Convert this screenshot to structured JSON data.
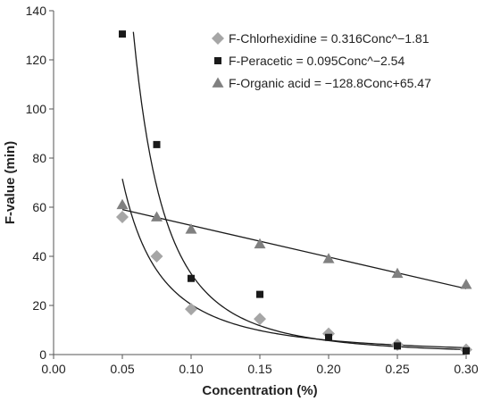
{
  "chart_data": {
    "type": "scatter",
    "title": "",
    "xlabel": "Concentration (%)",
    "ylabel": "F-value (min)",
    "xlim": [
      0,
      0.3
    ],
    "ylim": [
      0,
      140
    ],
    "x_ticks": [
      0,
      0.05,
      0.1,
      0.15,
      0.2,
      0.25,
      0.3
    ],
    "x_tick_labels": [
      "0.00",
      "0.05",
      "0.10",
      "0.15",
      "0.20",
      "0.25",
      "0.30"
    ],
    "y_ticks": [
      0,
      20,
      40,
      60,
      80,
      100,
      120,
      140
    ],
    "y_tick_labels": [
      "0",
      "20",
      "40",
      "60",
      "80",
      "100",
      "120",
      "140"
    ],
    "grid": false,
    "legend_position": "top-right",
    "series": [
      {
        "name": "F-Chlorhexidine = 0.316Conc^−1.81",
        "marker": "diamond",
        "color": "#a6a6a6",
        "x": [
          0.05,
          0.075,
          0.1,
          0.15,
          0.2,
          0.25,
          0.3
        ],
        "y": [
          56,
          40,
          18.5,
          14.5,
          8.5,
          4,
          2
        ],
        "fit": {
          "kind": "power",
          "a": 0.316,
          "b": -1.81,
          "x_range": [
            0.05,
            0.3
          ]
        }
      },
      {
        "name": "F-Peracetic = 0.095Conc^−2.54",
        "marker": "square",
        "color": "#1a1a1a",
        "x": [
          0.05,
          0.075,
          0.1,
          0.15,
          0.2,
          0.25,
          0.3
        ],
        "y": [
          130.5,
          85.5,
          31,
          24.5,
          7,
          3.5,
          1.5
        ],
        "fit": {
          "kind": "power",
          "a": 0.095,
          "b": -2.54,
          "x_range": [
            0.058,
            0.3
          ]
        }
      },
      {
        "name": "F-Organic acid = −128.8Conc+65.47",
        "marker": "triangle",
        "color": "#808080",
        "x": [
          0.05,
          0.075,
          0.1,
          0.15,
          0.2,
          0.25,
          0.3
        ],
        "y": [
          61,
          56,
          51,
          45,
          39,
          33,
          28.5
        ],
        "fit": {
          "kind": "linear",
          "m": -128.8,
          "c": 65.47,
          "x_range": [
            0.05,
            0.3
          ]
        }
      }
    ]
  }
}
